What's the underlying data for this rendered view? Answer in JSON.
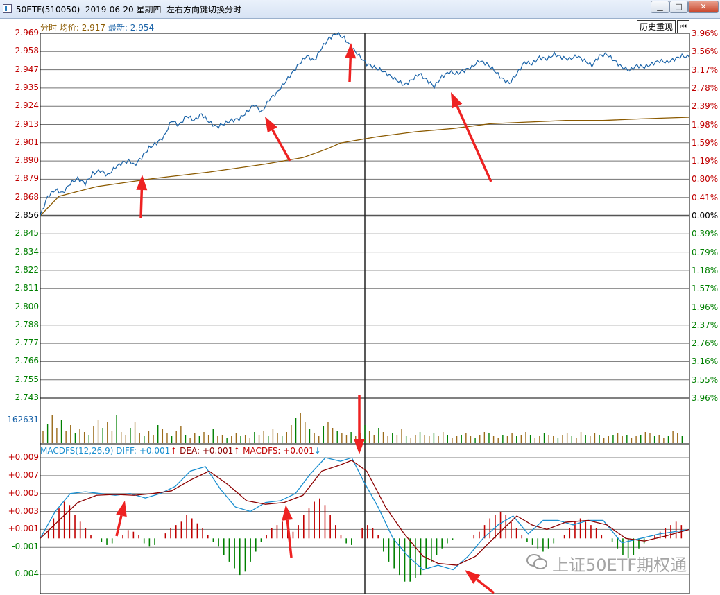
{
  "window": {
    "title": "50ETF(510050)  2019-06-20 星期四",
    "hint": "左右方向键切换分时",
    "min_glyph": "▁",
    "max_glyph": "□",
    "close_glyph": "✕"
  },
  "toolbar": {
    "history_label": "历史重现",
    "back_glyph": "⏮"
  },
  "info": {
    "prefix": "分时 均价:",
    "avg_value": "2.917",
    "latest_label": "最新:",
    "latest_value": "2.954"
  },
  "price_axis": {
    "left": [
      "2.969",
      "2.958",
      "2.947",
      "2.935",
      "2.924",
      "2.913",
      "2.901",
      "2.890",
      "2.879",
      "2.868",
      "2.856",
      "2.845",
      "2.834",
      "2.822",
      "2.811",
      "2.800",
      "2.788",
      "2.777",
      "2.766",
      "2.755",
      "2.743"
    ],
    "right": [
      "3.96%",
      "3.56%",
      "3.17%",
      "2.78%",
      "2.39%",
      "1.98%",
      "1.59%",
      "1.19%",
      "0.80%",
      "0.41%",
      "0.00%",
      "0.39%",
      "0.79%",
      "1.18%",
      "1.57%",
      "1.96%",
      "2.37%",
      "2.76%",
      "3.16%",
      "3.55%",
      "3.96%"
    ]
  },
  "volume": {
    "label": "162631"
  },
  "macd": {
    "prefix": "MACDFS(12,26,9)",
    "diff_label": "DIFF:",
    "diff_value": "+0.001",
    "diff_arrow": "↑",
    "dea_label": "DEA:",
    "dea_value": "+0.001",
    "dea_arrow": "↑",
    "macdfs_label": "MACDFS:",
    "macdfs_value": "+0.001",
    "macdfs_arrow": "↓",
    "axis": [
      "+0.009",
      "+0.007",
      "+0.005",
      "+0.003",
      "+0.001",
      "-0.001",
      "-0.004"
    ]
  },
  "watermark": {
    "text": "上证50ETF期权通"
  },
  "colors": {
    "price_line": "#1a63a8",
    "avg_line": "#8b5a00",
    "up": "#c00000",
    "down": "#008000",
    "diff_line": "#1a8fd0",
    "dea_line": "#8b0000",
    "annotation_arrow": "#ee2222"
  },
  "chart_data": {
    "type": "line",
    "open_price": 2.856,
    "price_series": [
      [
        0,
        2.856
      ],
      [
        4,
        2.868
      ],
      [
        8,
        2.872
      ],
      [
        12,
        2.87
      ],
      [
        16,
        2.876
      ],
      [
        20,
        2.879
      ],
      [
        24,
        2.876
      ],
      [
        28,
        2.882
      ],
      [
        32,
        2.884
      ],
      [
        36,
        2.881
      ],
      [
        40,
        2.886
      ],
      [
        44,
        2.889
      ],
      [
        48,
        2.89
      ],
      [
        50,
        2.887
      ],
      [
        54,
        2.892
      ],
      [
        58,
        2.898
      ],
      [
        62,
        2.901
      ],
      [
        66,
        2.905
      ],
      [
        70,
        2.915
      ],
      [
        74,
        2.912
      ],
      [
        78,
        2.918
      ],
      [
        82,
        2.915
      ],
      [
        86,
        2.919
      ],
      [
        90,
        2.914
      ],
      [
        94,
        2.911
      ],
      [
        98,
        2.913
      ],
      [
        102,
        2.915
      ],
      [
        106,
        2.916
      ],
      [
        110,
        2.92
      ],
      [
        114,
        2.925
      ],
      [
        118,
        2.92
      ],
      [
        122,
        2.928
      ],
      [
        126,
        2.932
      ],
      [
        130,
        2.938
      ],
      [
        134,
        2.944
      ],
      [
        138,
        2.95
      ],
      [
        142,
        2.955
      ],
      [
        146,
        2.952
      ],
      [
        150,
        2.96
      ],
      [
        154,
        2.966
      ],
      [
        158,
        2.969
      ],
      [
        162,
        2.966
      ],
      [
        166,
        2.96
      ],
      [
        170,
        2.955
      ],
      [
        174,
        2.95
      ],
      [
        178,
        2.948
      ],
      [
        182,
        2.946
      ],
      [
        186,
        2.943
      ],
      [
        190,
        2.94
      ],
      [
        194,
        2.937
      ],
      [
        198,
        2.94
      ],
      [
        202,
        2.944
      ],
      [
        206,
        2.94
      ],
      [
        210,
        2.936
      ],
      [
        214,
        2.942
      ],
      [
        218,
        2.945
      ],
      [
        222,
        2.944
      ],
      [
        226,
        2.946
      ],
      [
        230,
        2.948
      ],
      [
        234,
        2.952
      ],
      [
        238,
        2.95
      ],
      [
        242,
        2.946
      ],
      [
        246,
        2.941
      ],
      [
        250,
        2.938
      ],
      [
        254,
        2.944
      ],
      [
        258,
        2.951
      ],
      [
        262,
        2.95
      ],
      [
        266,
        2.954
      ],
      [
        270,
        2.953
      ],
      [
        274,
        2.956
      ],
      [
        278,
        2.954
      ],
      [
        282,
        2.953
      ],
      [
        286,
        2.955
      ],
      [
        290,
        2.952
      ],
      [
        294,
        2.949
      ],
      [
        298,
        2.955
      ],
      [
        302,
        2.956
      ],
      [
        306,
        2.952
      ],
      [
        310,
        2.948
      ],
      [
        314,
        2.946
      ],
      [
        318,
        2.949
      ],
      [
        322,
        2.948
      ],
      [
        326,
        2.95
      ],
      [
        330,
        2.952
      ],
      [
        334,
        2.951
      ],
      [
        338,
        2.953
      ],
      [
        342,
        2.955
      ],
      [
        346,
        2.954
      ]
    ],
    "avg_series": [
      [
        0,
        2.856
      ],
      [
        10,
        2.868
      ],
      [
        30,
        2.874
      ],
      [
        60,
        2.879
      ],
      [
        90,
        2.883
      ],
      [
        120,
        2.888
      ],
      [
        140,
        2.892
      ],
      [
        152,
        2.897
      ],
      [
        160,
        2.901
      ],
      [
        180,
        2.905
      ],
      [
        200,
        2.908
      ],
      [
        220,
        2.91
      ],
      [
        240,
        2.913
      ],
      [
        260,
        2.914
      ],
      [
        280,
        2.915
      ],
      [
        300,
        2.915
      ],
      [
        320,
        2.916
      ],
      [
        346,
        2.917
      ]
    ],
    "volume_heights": [
      18,
      28,
      40,
      22,
      34,
      18,
      26,
      14,
      20,
      16,
      12,
      24,
      34,
      22,
      30,
      18,
      40,
      16,
      12,
      22,
      30,
      14,
      10,
      18,
      12,
      26,
      20,
      14,
      10,
      18,
      24,
      12,
      8,
      14,
      10,
      16,
      12,
      20,
      10,
      12,
      8,
      10,
      14,
      10,
      12,
      8,
      16,
      12,
      18,
      10,
      20,
      14,
      10,
      16,
      26,
      36,
      44,
      30,
      20,
      14,
      10,
      24,
      30,
      22,
      18,
      14,
      12,
      16,
      10,
      14,
      26,
      18,
      12,
      22,
      16,
      10,
      14,
      12,
      20,
      10,
      8,
      12,
      16,
      12,
      10,
      14,
      10,
      16,
      12,
      8,
      10,
      12,
      14,
      10,
      8,
      12,
      16,
      14,
      10,
      8,
      12,
      10,
      14,
      10,
      12,
      16,
      12,
      8,
      10,
      14,
      12,
      10,
      8,
      12,
      14,
      10,
      8,
      16,
      12,
      10,
      14,
      12,
      8,
      10,
      12,
      14,
      10,
      12,
      8,
      10,
      12,
      16,
      14,
      10,
      12,
      8,
      10,
      18,
      14,
      10
    ],
    "volume_colors": "mixed",
    "macd_diff": [
      [
        0,
        0.0
      ],
      [
        8,
        0.003
      ],
      [
        16,
        0.005
      ],
      [
        24,
        0.0052
      ],
      [
        32,
        0.005
      ],
      [
        40,
        0.0048
      ],
      [
        48,
        0.005
      ],
      [
        56,
        0.0045
      ],
      [
        64,
        0.005
      ],
      [
        72,
        0.0058
      ],
      [
        80,
        0.0075
      ],
      [
        88,
        0.008
      ],
      [
        96,
        0.0055
      ],
      [
        104,
        0.0035
      ],
      [
        112,
        0.003
      ],
      [
        120,
        0.004
      ],
      [
        128,
        0.0042
      ],
      [
        136,
        0.005
      ],
      [
        144,
        0.0072
      ],
      [
        152,
        0.009
      ],
      [
        160,
        0.0086
      ],
      [
        166,
        0.009
      ],
      [
        172,
        0.0065
      ],
      [
        180,
        0.0035
      ],
      [
        188,
        0.0
      ],
      [
        196,
        -0.002
      ],
      [
        204,
        -0.0035
      ],
      [
        212,
        -0.003
      ],
      [
        220,
        -0.0035
      ],
      [
        228,
        -0.002
      ],
      [
        236,
        0.0
      ],
      [
        244,
        0.0015
      ],
      [
        252,
        0.0025
      ],
      [
        260,
        0.0005
      ],
      [
        268,
        0.002
      ],
      [
        276,
        0.002
      ],
      [
        284,
        0.0015
      ],
      [
        292,
        0.002
      ],
      [
        300,
        0.002
      ],
      [
        310,
        -0.0005
      ],
      [
        320,
        0.0
      ],
      [
        330,
        0.0005
      ],
      [
        346,
        0.001
      ]
    ],
    "macd_dea": [
      [
        0,
        0.0
      ],
      [
        10,
        0.002
      ],
      [
        20,
        0.004
      ],
      [
        30,
        0.0048
      ],
      [
        40,
        0.0049
      ],
      [
        50,
        0.0048
      ],
      [
        60,
        0.005
      ],
      [
        70,
        0.0053
      ],
      [
        80,
        0.0065
      ],
      [
        90,
        0.0075
      ],
      [
        100,
        0.006
      ],
      [
        110,
        0.0042
      ],
      [
        120,
        0.0038
      ],
      [
        130,
        0.004
      ],
      [
        140,
        0.0048
      ],
      [
        150,
        0.0075
      ],
      [
        160,
        0.0082
      ],
      [
        166,
        0.0087
      ],
      [
        174,
        0.0075
      ],
      [
        184,
        0.0035
      ],
      [
        194,
        0.0005
      ],
      [
        204,
        -0.002
      ],
      [
        212,
        -0.0028
      ],
      [
        222,
        -0.003
      ],
      [
        232,
        -0.002
      ],
      [
        244,
        0.0005
      ],
      [
        254,
        0.0025
      ],
      [
        262,
        0.0015
      ],
      [
        270,
        0.001
      ],
      [
        280,
        0.0018
      ],
      [
        292,
        0.002
      ],
      [
        302,
        0.0015
      ],
      [
        312,
        0.0
      ],
      [
        322,
        -0.0003
      ],
      [
        334,
        0.0003
      ],
      [
        346,
        0.001
      ]
    ],
    "macd_bars": [
      0,
      5,
      12,
      18,
      22,
      20,
      14,
      10,
      6,
      2,
      0,
      -2,
      -4,
      -3,
      0,
      2,
      5,
      4,
      2,
      -3,
      -5,
      -4,
      0,
      3,
      6,
      8,
      10,
      14,
      12,
      9,
      6,
      2,
      -2,
      -5,
      -10,
      -14,
      -18,
      -22,
      -20,
      -14,
      -8,
      -2,
      2,
      6,
      8,
      10,
      6,
      4,
      8,
      14,
      18,
      22,
      24,
      20,
      14,
      8,
      2,
      -3,
      -4,
      0,
      6,
      8,
      6,
      2,
      -8,
      -14,
      -18,
      -22,
      -26,
      -26,
      -24,
      -22,
      -18,
      -14,
      -10,
      -6,
      -3,
      -1,
      0,
      0,
      0,
      2,
      4,
      8,
      12,
      14,
      16,
      14,
      10,
      6,
      2,
      -2,
      -4,
      -6,
      -8,
      -6,
      -3,
      0,
      2,
      6,
      10,
      12,
      10,
      8,
      6,
      2,
      0,
      -2,
      -6,
      -10,
      -12,
      -10,
      -6,
      -3,
      0,
      2,
      4,
      6,
      8,
      10,
      8
    ]
  }
}
